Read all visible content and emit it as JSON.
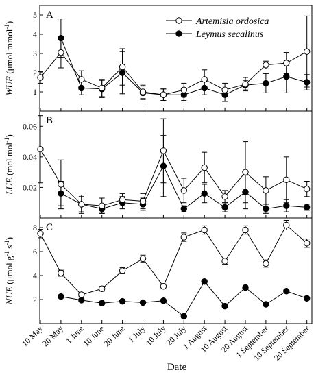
{
  "figure": {
    "xlabel": "Date",
    "categories": [
      "10 May",
      "20 May",
      "1 June",
      "10 June",
      "20 June",
      "1 July",
      "10 July",
      "20 July",
      "1 August",
      "10 August",
      "20 August",
      "1 September",
      "10 September",
      "20 September"
    ],
    "legend": [
      {
        "name": "Artemisia ordosica",
        "marker": "open-circle"
      },
      {
        "name": "Leymus secalinus",
        "marker": "filled-circle"
      }
    ],
    "legend_placement": "top-right of panel A"
  },
  "chart_data": [
    {
      "type": "line",
      "panel_label": "A",
      "ylabel_abbr": "WUE",
      "ylabel_unit": "(μmol mmol",
      "ylabel_sup": "-1",
      "ylabel_close": ")",
      "ylim": [
        0,
        5.5
      ],
      "yticks": [
        1,
        2,
        3,
        4,
        5
      ],
      "ytick_labels": [
        "1",
        "2",
        "3",
        "4",
        "5"
      ],
      "categories": [
        "10 May",
        "20 May",
        "1 June",
        "10 June",
        "20 June",
        "1 July",
        "10 July",
        "20 July",
        "1 August",
        "10 August",
        "20 August",
        "1 September",
        "10 September",
        "20 September"
      ],
      "series": [
        {
          "name": "Artemisia ordosica",
          "values": [
            1.75,
            3.05,
            1.65,
            1.2,
            2.3,
            1.0,
            0.85,
            1.1,
            1.65,
            1.1,
            1.4,
            2.4,
            2.5,
            3.1
          ],
          "errors": [
            0.3,
            0.8,
            0.45,
            0.45,
            0.95,
            0.35,
            0.3,
            0.35,
            0.5,
            0.35,
            0.35,
            0.2,
            0.55,
            1.85
          ]
        },
        {
          "name": "Leymus secalinus",
          "values": [
            null,
            3.8,
            1.2,
            1.15,
            2.0,
            0.95,
            0.85,
            0.85,
            1.2,
            0.85,
            1.35,
            1.45,
            1.8,
            1.5
          ],
          "errors": [
            null,
            1.0,
            0.35,
            0.45,
            1.1,
            0.35,
            0.3,
            0.3,
            0.35,
            0.35,
            0.25,
            0.5,
            0.85,
            0.4
          ]
        }
      ]
    },
    {
      "type": "line",
      "panel_label": "B",
      "ylabel_abbr": "LUE",
      "ylabel_unit": "(mol mol",
      "ylabel_sup": "-1",
      "ylabel_close": ")",
      "ylim": [
        0,
        0.07
      ],
      "yticks": [
        0.02,
        0.04,
        0.06
      ],
      "ytick_labels": [
        "0.02",
        "0.04",
        "0.06"
      ],
      "categories": [
        "10 May",
        "20 May",
        "1 June",
        "10 June",
        "20 June",
        "1 July",
        "10 July",
        "20 July",
        "1 August",
        "10 August",
        "20 August",
        "1 September",
        "10 September",
        "20 September"
      ],
      "series": [
        {
          "name": "Artemisia ordosica",
          "values": [
            0.045,
            0.022,
            0.009,
            0.008,
            0.012,
            0.011,
            0.044,
            0.018,
            0.033,
            0.014,
            0.03,
            0.018,
            0.025,
            0.019
          ],
          "errors": [
            0.022,
            0.016,
            0.006,
            0.005,
            0.004,
            0.005,
            0.021,
            0.008,
            0.01,
            0.004,
            0.02,
            0.009,
            0.015,
            0.005
          ]
        },
        {
          "name": "Leymus secalinus",
          "values": [
            null,
            0.016,
            0.009,
            0.006,
            0.01,
            0.009,
            0.034,
            0.006,
            0.016,
            0.007,
            0.017,
            0.006,
            0.008,
            0.007
          ],
          "errors": [
            null,
            0.008,
            0.005,
            0.003,
            0.004,
            0.004,
            0.02,
            0.002,
            0.006,
            0.003,
            0.011,
            0.003,
            0.004,
            0.002
          ]
        }
      ]
    },
    {
      "type": "line",
      "panel_label": "C",
      "ylabel_abbr": "NUE",
      "ylabel_unit": "(μmol g",
      "ylabel_sup": "-1",
      "ylabel_mid": " s",
      "ylabel_sup2": "-1",
      "ylabel_close": ")",
      "ylim": [
        0,
        8.8
      ],
      "yticks": [
        2,
        4,
        6,
        8
      ],
      "ytick_labels": [
        "2",
        "4",
        "6",
        "8"
      ],
      "categories": [
        "10 May",
        "20 May",
        "1 June",
        "10 June",
        "20 June",
        "1 July",
        "10 July",
        "20 July",
        "1 August",
        "10 August",
        "20 August",
        "1 September",
        "10 September",
        "20 September"
      ],
      "series": [
        {
          "name": "Artemisia ordosica",
          "values": [
            7.5,
            4.2,
            2.4,
            2.9,
            4.4,
            5.4,
            3.1,
            7.2,
            7.8,
            5.2,
            7.8,
            5.0,
            8.2,
            6.7
          ],
          "errors": [
            0.35,
            0.25,
            0.15,
            0.2,
            0.25,
            0.3,
            0.2,
            0.35,
            0.35,
            0.25,
            0.35,
            0.3,
            0.4,
            0.35
          ]
        },
        {
          "name": "Leymus secalinus",
          "values": [
            null,
            2.25,
            1.95,
            1.7,
            1.85,
            1.75,
            1.9,
            0.6,
            3.5,
            1.45,
            3.0,
            1.6,
            2.7,
            2.1
          ],
          "errors": [
            null,
            0.1,
            0.1,
            0.1,
            0.1,
            0.1,
            0.1,
            0.05,
            0.15,
            0.1,
            0.15,
            0.1,
            0.15,
            0.1
          ]
        }
      ]
    }
  ]
}
